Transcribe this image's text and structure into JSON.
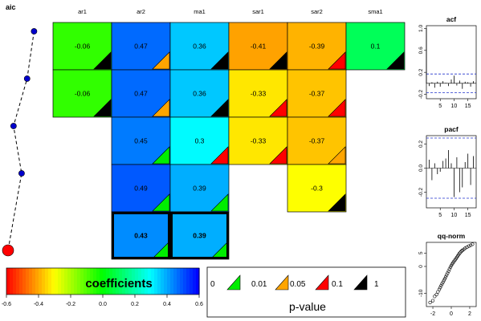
{
  "chart_data": {
    "type": "heatmap",
    "aic": {
      "title": "aic",
      "points": [
        {
          "model": 1,
          "level": 0.9,
          "best": false
        },
        {
          "model": 2,
          "level": 0.66,
          "best": false
        },
        {
          "model": 3,
          "level": 0.19,
          "best": false
        },
        {
          "model": 4,
          "level": 0.47,
          "best": false
        },
        {
          "model": 5,
          "level": 0.0,
          "best": true
        }
      ]
    },
    "columns": [
      "ar1",
      "ar2",
      "ma1",
      "sar1",
      "sar2",
      "sma1"
    ],
    "rows": [
      [
        {
          "v": "-0.06",
          "c": -0.06,
          "p": "0.1"
        },
        {
          "v": "0.47",
          "c": 0.47,
          "p": "0.01"
        },
        {
          "v": "0.36",
          "c": 0.36,
          "p": "0.1"
        },
        {
          "v": "-0.41",
          "c": -0.41,
          "p": "0.1"
        },
        {
          "v": "-0.39",
          "c": -0.39,
          "p": "0.05"
        },
        {
          "v": "0.1",
          "c": 0.1,
          "p": "0.1"
        }
      ],
      [
        {
          "v": "-0.06",
          "c": -0.06,
          "p": "0.1"
        },
        {
          "v": "0.47",
          "c": 0.47,
          "p": "0.01"
        },
        {
          "v": "0.36",
          "c": 0.36,
          "p": "0.1"
        },
        {
          "v": "-0.33",
          "c": -0.33,
          "p": "0.05"
        },
        {
          "v": "-0.37",
          "c": -0.37,
          "p": "0.05"
        },
        null
      ],
      [
        null,
        {
          "v": "0.45",
          "c": 0.45,
          "p": "0"
        },
        {
          "v": "0.3",
          "c": 0.3,
          "p": "0.05"
        },
        {
          "v": "-0.33",
          "c": -0.33,
          "p": "0.05"
        },
        {
          "v": "-0.37",
          "c": -0.37,
          "p": "0.01"
        },
        null
      ],
      [
        null,
        {
          "v": "0.49",
          "c": 0.49,
          "p": "0"
        },
        {
          "v": "0.39",
          "c": 0.39,
          "p": "0"
        },
        null,
        {
          "v": "-0.3",
          "c": -0.3,
          "p": "0.1"
        },
        null
      ],
      [
        null,
        {
          "v": "0.43",
          "c": 0.43,
          "p": "0",
          "best": true
        },
        {
          "v": "0.39",
          "c": 0.39,
          "p": "0",
          "best": true
        },
        null,
        null,
        null
      ]
    ],
    "colorbar": {
      "label": "coefficients",
      "ticks": [
        "-0.6",
        "-0.4",
        "-0.2",
        "0.0",
        "0.2",
        "0.4",
        "0.6"
      ],
      "range": [
        -0.6,
        0.6
      ]
    },
    "pvalue_legend": {
      "title": "p-value",
      "levels": [
        "0",
        "0.01",
        "0.05",
        "0.1",
        "1"
      ],
      "colors": [
        "#00ee00",
        "#ffa500",
        "#ff0000",
        "#000000"
      ]
    },
    "acf": {
      "title": "acf",
      "yticks": [
        "-0.2",
        "0.2",
        "0.6",
        "1.0"
      ],
      "xticks": [
        "5",
        "10",
        "15"
      ],
      "xlim": [
        0,
        18
      ],
      "ylim": [
        -0.28,
        1.05
      ],
      "ci": 0.17,
      "values": [
        1.0,
        -0.05,
        0.02,
        -0.08,
        0.03,
        -0.06,
        0.04,
        0.01,
        -0.05,
        0.07,
        0.14,
        -0.04,
        0.05,
        -0.1,
        0.03,
        0.02,
        -0.06,
        0.04
      ]
    },
    "pacf": {
      "title": "pacf",
      "yticks": [
        "-0.2",
        "0.0",
        "0.2"
      ],
      "xticks": [
        "5",
        "10",
        "15"
      ],
      "xlim": [
        0,
        18
      ],
      "ylim": [
        -0.33,
        0.27
      ],
      "ci": 0.25,
      "values": [
        0.07,
        -0.1,
        0.04,
        -0.05,
        -0.03,
        0.06,
        0.08,
        0.15,
        0.04,
        -0.24,
        0.09,
        -0.2,
        -0.16,
        0.05,
        0.12,
        -0.14,
        0.1
      ]
    },
    "qqnorm": {
      "title": "qq-norm",
      "xticks": [
        "-2",
        "0",
        "2"
      ],
      "yticks": [
        "-10",
        "0",
        "5"
      ],
      "xlim": [
        -2.7,
        2.7
      ],
      "ylim": [
        -15,
        9
      ],
      "points": [
        [
          -2.3,
          -13.5
        ],
        [
          -2.0,
          -12.8
        ],
        [
          -1.8,
          -11.2
        ],
        [
          -1.6,
          -10.5
        ],
        [
          -1.45,
          -9.5
        ],
        [
          -1.3,
          -8.6
        ],
        [
          -1.2,
          -7.9
        ],
        [
          -1.1,
          -7.2
        ],
        [
          -1.0,
          -6.5
        ],
        [
          -0.9,
          -5.9
        ],
        [
          -0.8,
          -5.2
        ],
        [
          -0.7,
          -4.6
        ],
        [
          -0.6,
          -3.9
        ],
        [
          -0.5,
          -3.2
        ],
        [
          -0.4,
          -2.5
        ],
        [
          -0.3,
          -1.8
        ],
        [
          -0.2,
          -1.0
        ],
        [
          -0.1,
          -0.3
        ],
        [
          0.0,
          0.3
        ],
        [
          0.1,
          0.9
        ],
        [
          0.2,
          1.4
        ],
        [
          0.3,
          1.9
        ],
        [
          0.4,
          2.4
        ],
        [
          0.5,
          2.9
        ],
        [
          0.6,
          3.4
        ],
        [
          0.7,
          3.9
        ],
        [
          0.8,
          4.4
        ],
        [
          0.9,
          4.9
        ],
        [
          1.0,
          5.3
        ],
        [
          1.1,
          5.7
        ],
        [
          1.2,
          6.0
        ],
        [
          1.35,
          6.4
        ],
        [
          1.5,
          6.8
        ],
        [
          1.7,
          7.2
        ],
        [
          1.9,
          7.6
        ],
        [
          2.1,
          7.9
        ],
        [
          2.3,
          8.3
        ]
      ]
    }
  }
}
